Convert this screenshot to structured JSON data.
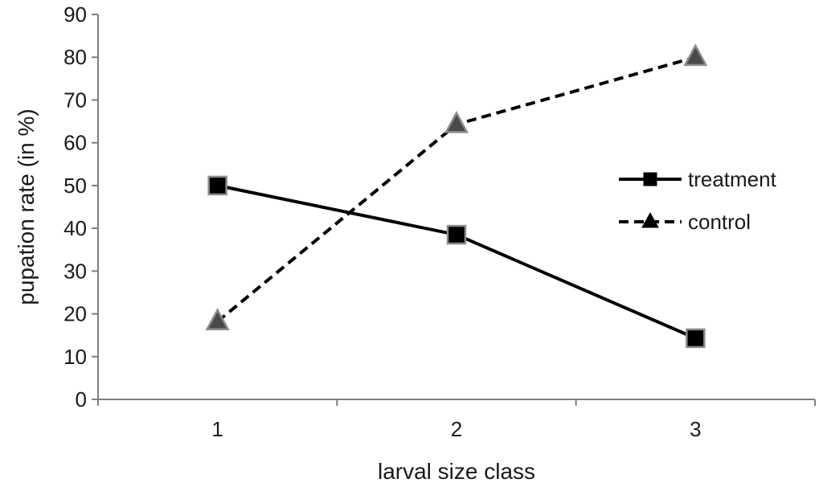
{
  "chart_data": {
    "type": "line",
    "xlabel": "larval size class",
    "ylabel": "pupation rate (in %)",
    "categories": [
      "1",
      "2",
      "3"
    ],
    "ylim": [
      0,
      90
    ],
    "yticks": [
      "0",
      "10",
      "20",
      "30",
      "40",
      "50",
      "60",
      "70",
      "80",
      "90"
    ],
    "grid": false,
    "legend": {
      "position": "right"
    },
    "series": [
      {
        "name": "treatment",
        "values": [
          50,
          38.5,
          14.3
        ],
        "line_style": "solid",
        "marker": "square",
        "color": "#000000",
        "marker_edge": "#8c8c8c"
      },
      {
        "name": "control",
        "values": [
          18.2,
          64.3,
          80
        ],
        "line_style": "dashed",
        "marker": "triangle",
        "color": "#000000",
        "marker_fill": "#4a4a4a",
        "marker_edge": "#8c8c8c"
      }
    ]
  }
}
